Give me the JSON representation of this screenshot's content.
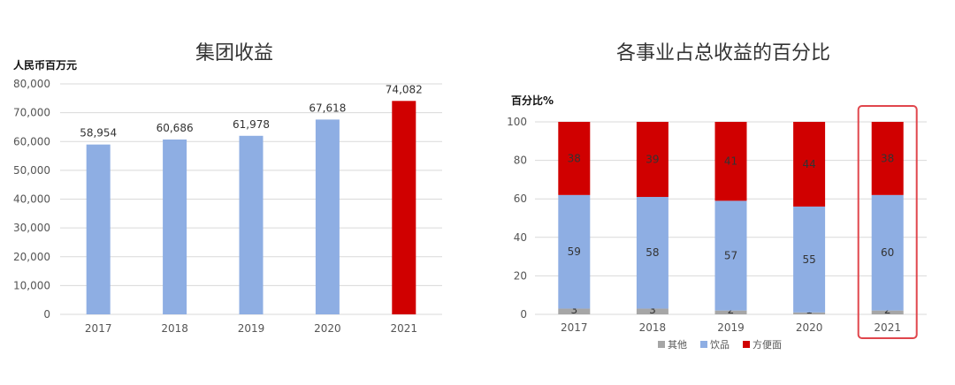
{
  "chart_data": [
    {
      "type": "bar",
      "title": "集团收益",
      "ylabel": "人民币百万元",
      "categories": [
        "2017",
        "2018",
        "2019",
        "2020",
        "2021"
      ],
      "values": [
        58954,
        60686,
        61978,
        67618,
        74082
      ],
      "value_labels": [
        "58,954",
        "60,686",
        "61,978",
        "67,618",
        "74,082"
      ],
      "bar_colors": [
        "#8eaee3",
        "#8eaee3",
        "#8eaee3",
        "#8eaee3",
        "#d00000"
      ],
      "ylim": [
        0,
        80000
      ],
      "yticks": [
        "0",
        "10,000",
        "20,000",
        "30,000",
        "40,000",
        "50,000",
        "60,000",
        "70,000",
        "80,000"
      ],
      "grid": true
    },
    {
      "type": "bar",
      "stacked": true,
      "title": "各事业占总收益的百分比",
      "ylabel": "百分比%",
      "categories": [
        "2017",
        "2018",
        "2019",
        "2020",
        "2021"
      ],
      "series": [
        {
          "name": "其他",
          "color": "#a6a6a6",
          "values": [
            3,
            3,
            2,
            1,
            2
          ]
        },
        {
          "name": "饮品",
          "color": "#8eaee3",
          "values": [
            59,
            58,
            57,
            55,
            60
          ]
        },
        {
          "name": "方便面",
          "color": "#d00000",
          "values": [
            38,
            39,
            41,
            44,
            38
          ]
        }
      ],
      "ylim": [
        0,
        100
      ],
      "yticks": [
        "0",
        "20",
        "40",
        "60",
        "80",
        "100"
      ],
      "legend_position": "bottom",
      "highlight_category": "2021",
      "highlight_color": "#e0464c"
    }
  ]
}
